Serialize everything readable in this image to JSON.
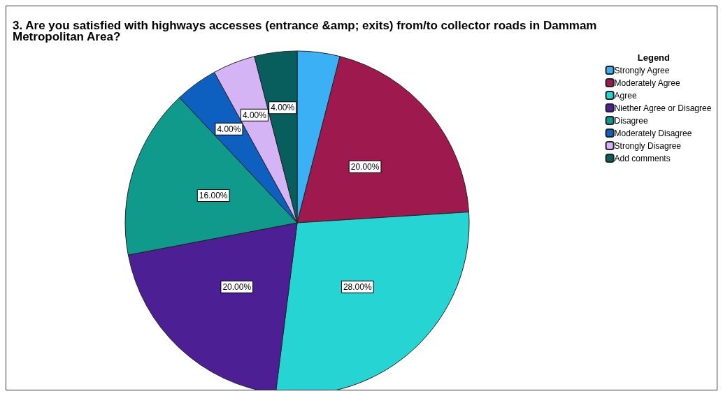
{
  "chart_data": {
    "type": "pie",
    "title": "3. Are you satisfied with highways accesses (entrance &amp; exits) from/to collector roads in Dammam Metropolitan Area?",
    "legend_title": "Legend",
    "legend": "top right",
    "categories": [
      "Strongly Agree",
      "Moderately Agree",
      "Agree",
      "Niether Agree or Disagree",
      "Disagree",
      "Moderately Disagree",
      "Strongly Disagree",
      "Add comments"
    ],
    "values": [
      4,
      20,
      28,
      20,
      16,
      4,
      4,
      4
    ],
    "value_labels": [
      null,
      "20.00%",
      "28.00%",
      "20.00%",
      "16.00%",
      "4.00%",
      "4.00%",
      "4.00%"
    ],
    "colors": [
      "#3cb0f5",
      "#9e1a4e",
      "#26d4d4",
      "#4d1f95",
      "#0f9a8c",
      "#0d5fc0",
      "#d5b4f5",
      "#075e5c"
    ]
  }
}
